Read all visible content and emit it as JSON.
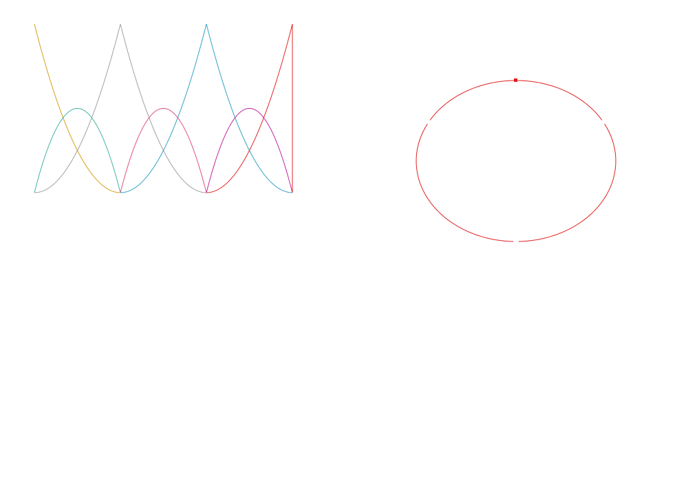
{
  "basis_colors": [
    "#d4a017",
    "#40b3a2",
    "#a0a0a0",
    "#e0507a",
    "#2fa3c4",
    "#c0259e",
    "#e02626"
  ],
  "ellipse_color": "#e01f1f"
}
